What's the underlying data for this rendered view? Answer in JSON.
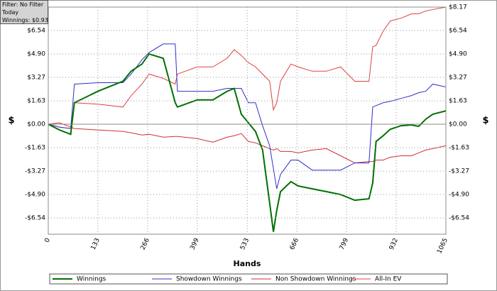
{
  "chart_data": {
    "type": "line",
    "x_label": "Hands",
    "y_label": "$",
    "annotations": [
      "Filter: No Filter",
      "Today",
      "Winnings: $0.93"
    ],
    "xlim": [
      0,
      1065
    ],
    "xticks": [
      0,
      133,
      266,
      399,
      533,
      666,
      799,
      932,
      1065
    ],
    "ylim": [
      -7.67,
      8.17
    ],
    "yticks": [
      {
        "value": 8.17,
        "label": "$8.17"
      },
      {
        "value": 6.54,
        "label": "$6.54"
      },
      {
        "value": 4.9,
        "label": "$4.90"
      },
      {
        "value": 3.27,
        "label": "$3.27"
      },
      {
        "value": 1.63,
        "label": "$1.63"
      },
      {
        "value": 0,
        "label": "$0.00"
      },
      {
        "value": -1.63,
        "label": "-$1.63"
      },
      {
        "value": -3.27,
        "label": "-$3.27"
      },
      {
        "value": -4.9,
        "label": "-$4.90"
      },
      {
        "value": -6.54,
        "label": "-$6.54"
      }
    ],
    "grid": true,
    "legend": "bottom",
    "x": [
      0,
      30,
      60,
      70,
      133,
      200,
      222,
      251,
      270,
      308,
      340,
      346,
      399,
      441,
      479,
      498,
      517,
      536,
      555,
      574,
      593,
      603,
      612,
      622,
      650,
      669,
      707,
      745,
      783,
      821,
      859,
      869,
      878,
      897,
      916,
      945,
      973,
      992,
      1011,
      1030,
      1065
    ],
    "series": [
      {
        "name": "Winnings",
        "color": "#007000",
        "values": [
          0,
          -0.4,
          -0.7,
          1.5,
          2.3,
          3.0,
          3.7,
          4.2,
          4.9,
          4.6,
          1.5,
          1.2,
          1.7,
          1.7,
          2.3,
          2.5,
          0.7,
          0.1,
          -0.5,
          -1.8,
          -5.5,
          -7.5,
          -6.0,
          -4.7,
          -4.0,
          -4.3,
          -4.5,
          -4.7,
          -4.9,
          -5.3,
          -5.2,
          -4.1,
          -1.2,
          -0.8,
          -0.35,
          -0.1,
          -0.05,
          -0.15,
          0.35,
          0.7,
          0.93
        ]
      },
      {
        "name": "Showdown Winnings",
        "color": "#3030c8",
        "values": [
          0,
          -0.2,
          -0.3,
          2.8,
          2.9,
          2.9,
          3.5,
          4.5,
          5.0,
          5.6,
          5.6,
          2.3,
          2.3,
          2.3,
          2.5,
          2.5,
          2.5,
          1.5,
          1.5,
          -0.1,
          -1.5,
          -3.1,
          -4.5,
          -3.5,
          -2.5,
          -2.5,
          -3.2,
          -3.2,
          -3.2,
          -2.7,
          -2.7,
          1.2,
          1.3,
          1.5,
          1.6,
          1.8,
          2.0,
          2.2,
          2.3,
          2.8,
          2.6
        ]
      },
      {
        "name": "Non Showdown Winnings",
        "color": "#d03030",
        "values": [
          0,
          0.1,
          -0.2,
          -0.3,
          -0.4,
          -0.5,
          -0.6,
          -0.75,
          -0.7,
          -0.9,
          -0.85,
          -0.85,
          -1.0,
          -1.25,
          -0.9,
          -0.8,
          -0.65,
          -1.2,
          -1.3,
          -1.5,
          -1.7,
          -1.8,
          -1.7,
          -1.9,
          -1.9,
          -2.0,
          -1.8,
          -1.7,
          -2.2,
          -2.7,
          -2.6,
          -2.6,
          -2.5,
          -2.5,
          -2.3,
          -2.2,
          -2.2,
          -2.0,
          -1.8,
          -1.7,
          -1.5
        ]
      },
      {
        "name": "All-In EV",
        "color": "#e04040",
        "values": [
          0,
          -0.2,
          -0.3,
          1.5,
          1.4,
          1.2,
          2.0,
          2.8,
          3.5,
          3.2,
          2.8,
          3.5,
          4.0,
          4.0,
          4.6,
          5.2,
          4.8,
          4.3,
          4.0,
          3.5,
          3.0,
          1.0,
          1.5,
          3.0,
          4.2,
          4.0,
          3.7,
          3.7,
          4.0,
          3.0,
          3.0,
          5.4,
          5.5,
          6.5,
          7.2,
          7.4,
          7.7,
          7.7,
          7.9,
          8.0,
          8.17
        ]
      }
    ]
  }
}
